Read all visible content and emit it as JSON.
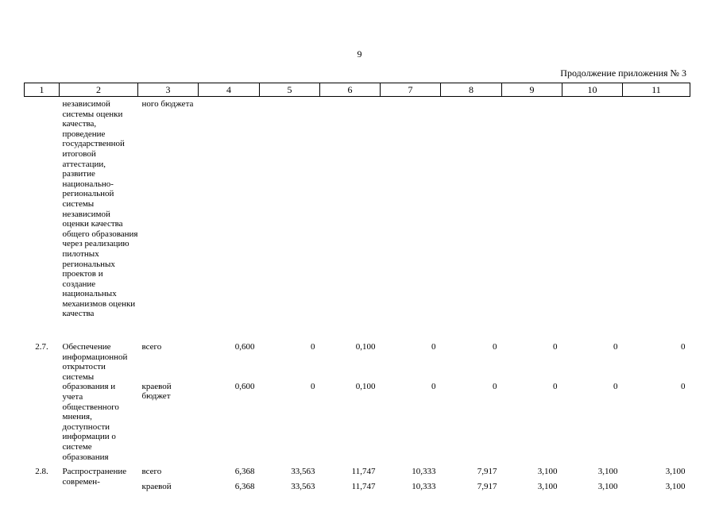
{
  "page": {
    "number": "9",
    "continuation": "Продолжение приложения № 3"
  },
  "table": {
    "headers": [
      "1",
      "2",
      "3",
      "4",
      "5",
      "6",
      "7",
      "8",
      "9",
      "10",
      "11"
    ],
    "carry_over": {
      "name": "независимой системы оценки качества, проведение государственной итоговой аттестации, развитие национально-региональной системы независимой оценки качества общего образования через реализацию пилотных региональных проектов и создание национальных механизмов оценки качества",
      "source": "ного бюджета"
    },
    "rows": [
      {
        "num": "2.7.",
        "name": "Обеспечение информационной открытости системы образования и учета общественного мнения, доступности информации о системе образования",
        "sources": [
          {
            "label": "всего",
            "values": [
              "0,600",
              "0",
              "0,100",
              "0",
              "0",
              "0",
              "0",
              "0"
            ]
          },
          {
            "label": "краевой бюджет",
            "values": [
              "0,600",
              "0",
              "0,100",
              "0",
              "0",
              "0",
              "0",
              "0"
            ]
          }
        ]
      },
      {
        "num": "2.8.",
        "name": "Распространение современ-",
        "sources": [
          {
            "label": "всего",
            "values": [
              "6,368",
              "33,563",
              "11,747",
              "10,333",
              "7,917",
              "3,100",
              "3,100",
              "3,100"
            ]
          },
          {
            "label": "краевой",
            "values": [
              "6,368",
              "33,563",
              "11,747",
              "10,333",
              "7,917",
              "3,100",
              "3,100",
              "3,100"
            ]
          }
        ]
      }
    ]
  }
}
